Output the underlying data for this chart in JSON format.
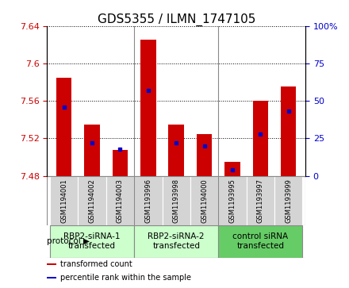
{
  "title": "GDS5355 / ILMN_1747105",
  "samples": [
    "GSM1194001",
    "GSM1194002",
    "GSM1194003",
    "GSM1193996",
    "GSM1193998",
    "GSM1194000",
    "GSM1193995",
    "GSM1193997",
    "GSM1193999"
  ],
  "transformed_counts": [
    7.585,
    7.535,
    7.508,
    7.625,
    7.535,
    7.525,
    7.495,
    7.56,
    7.575
  ],
  "percentile_ranks": [
    46,
    22,
    18,
    57,
    22,
    20,
    4,
    28,
    43
  ],
  "ylim": [
    7.48,
    7.64
  ],
  "yticks": [
    7.48,
    7.52,
    7.56,
    7.6,
    7.64
  ],
  "ytick_labels": [
    "7.48",
    "7.52",
    "7.56",
    "7.6",
    "7.64"
  ],
  "y2lim": [
    0,
    100
  ],
  "y2ticks": [
    0,
    25,
    50,
    75,
    100
  ],
  "y2tick_labels": [
    "0",
    "25",
    "50",
    "75",
    "100%"
  ],
  "bar_color": "#cc0000",
  "dot_color": "#0000cc",
  "bar_bottom": 7.48,
  "protocols": [
    {
      "label": "RBP2-siRNA-1\ntransfected",
      "indices": [
        0,
        1,
        2
      ],
      "color": "#ccffcc"
    },
    {
      "label": "RBP2-siRNA-2\ntransfected",
      "indices": [
        3,
        4,
        5
      ],
      "color": "#ccffcc"
    },
    {
      "label": "control siRNA\ntransfected",
      "indices": [
        6,
        7,
        8
      ],
      "color": "#66cc66"
    }
  ],
  "legend_items": [
    {
      "label": "transformed count",
      "color": "#cc0000"
    },
    {
      "label": "percentile rank within the sample",
      "color": "#0000cc"
    }
  ],
  "cell_bg": "#d4d4d4",
  "plot_bg": "#ffffff",
  "title_fontsize": 11,
  "tick_fontsize": 8,
  "label_fontsize": 7.5
}
